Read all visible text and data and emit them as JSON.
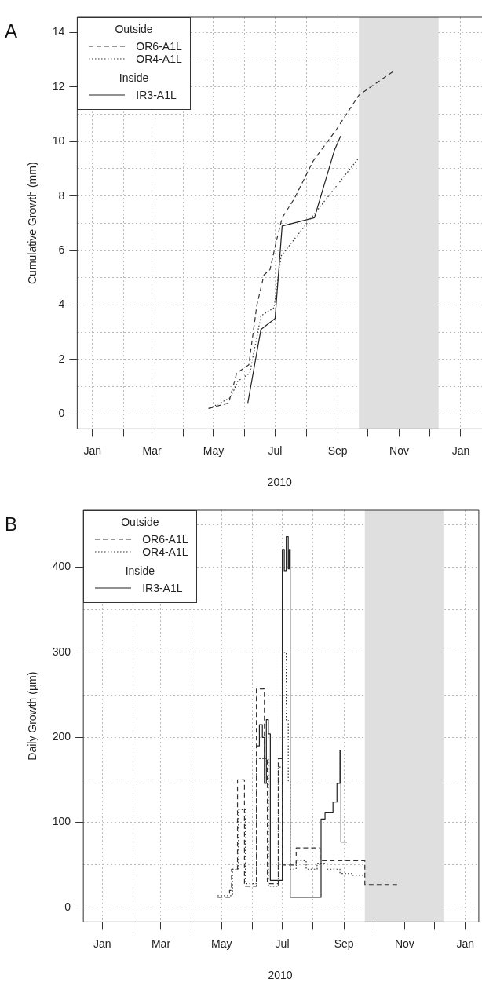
{
  "chart_data": [
    {
      "type": "line",
      "title": "A",
      "xlabel": "2010",
      "ylabel": "Cumulative Growth (mm)",
      "legend_title": "Outside",
      "annotations": [
        "Inside"
      ],
      "legend": "top left",
      "grid": true,
      "marker": "none",
      "xlim": [
        "2009-12-17",
        "2011-01-22"
      ],
      "ylim": [
        -0.55,
        14.56
      ],
      "xticks": [
        {
          "value": "2010-01-01",
          "label": "Jan"
        },
        {
          "value": "2010-02-01",
          "label": null
        },
        {
          "value": "2010-03-01",
          "label": "Mar"
        },
        {
          "value": "2010-04-01",
          "label": null
        },
        {
          "value": "2010-05-01",
          "label": "May"
        },
        {
          "value": "2010-06-01",
          "label": null
        },
        {
          "value": "2010-07-01",
          "label": "Jul"
        },
        {
          "value": "2010-08-01",
          "label": null
        },
        {
          "value": "2010-09-01",
          "label": "Sep"
        },
        {
          "value": "2010-10-01",
          "label": null
        },
        {
          "value": "2010-11-01",
          "label": "Nov"
        },
        {
          "value": "2010-12-01",
          "label": null
        },
        {
          "value": "2011-01-01",
          "label": "Jan"
        }
      ],
      "yticks": [
        0,
        {
          "value": 1,
          "label": null
        },
        2,
        {
          "value": 3,
          "label": null
        },
        4,
        {
          "value": 5,
          "label": null
        },
        6,
        {
          "value": 7,
          "label": null
        },
        8,
        {
          "value": 9,
          "label": null
        },
        10,
        {
          "value": 11,
          "label": null
        },
        12,
        {
          "value": 13,
          "label": null
        },
        14
      ],
      "bands": [
        {
          "axis": "x",
          "from": "2010-09-22",
          "to": "2010-12-10",
          "color": "#dfdfdf"
        }
      ],
      "series": [
        {
          "name": "OR6-A1L",
          "color": "#333333",
          "line_style": "dashed",
          "x": [
            "2010-04-26",
            "2010-05-16",
            "2010-05-24",
            "2010-06-05",
            "2010-06-13",
            "2010-06-20",
            "2010-06-26",
            "2010-07-02",
            "2010-07-08",
            "2010-07-20",
            "2010-08-08",
            "2010-08-30",
            "2010-09-22",
            "2010-10-27"
          ],
          "values": [
            0.2,
            0.4,
            1.5,
            1.8,
            4.0,
            5.1,
            5.3,
            6.3,
            7.2,
            7.9,
            9.3,
            10.4,
            11.7,
            12.6
          ]
        },
        {
          "name": "OR4-A1L",
          "color": "#333333",
          "line_style": "dotted",
          "x": [
            "2010-04-27",
            "2010-05-18",
            "2010-05-25",
            "2010-06-06",
            "2010-06-17",
            "2010-06-30",
            "2010-07-07",
            "2010-08-08",
            "2010-09-22"
          ],
          "values": [
            0.2,
            0.6,
            1.2,
            1.5,
            3.6,
            3.9,
            5.8,
            7.3,
            9.4
          ]
        },
        {
          "name": "IR3-A1L",
          "color": "#222222",
          "line_style": "solid",
          "x": [
            "2010-06-04",
            "2010-06-17",
            "2010-07-01",
            "2010-07-08",
            "2010-08-09",
            "2010-08-29",
            "2010-09-04"
          ],
          "values": [
            0.4,
            3.1,
            3.5,
            6.9,
            7.2,
            9.7,
            10.2
          ]
        }
      ]
    },
    {
      "type": "step",
      "title": "B",
      "xlabel": "2010",
      "ylabel": "Daily Growth (µm)",
      "legend_title": "Outside",
      "annotations": [
        "Inside"
      ],
      "legend": "top left",
      "grid": true,
      "marker": "none",
      "xlim": [
        "2009-12-13",
        "2011-01-13"
      ],
      "ylim": [
        -17,
        467
      ],
      "xticks": [
        {
          "value": "2010-01-01",
          "label": "Jan"
        },
        {
          "value": "2010-02-01",
          "label": null
        },
        {
          "value": "2010-03-01",
          "label": "Mar"
        },
        {
          "value": "2010-04-01",
          "label": null
        },
        {
          "value": "2010-05-01",
          "label": "May"
        },
        {
          "value": "2010-06-01",
          "label": null
        },
        {
          "value": "2010-07-01",
          "label": "Jul"
        },
        {
          "value": "2010-08-01",
          "label": null
        },
        {
          "value": "2010-09-01",
          "label": "Sep"
        },
        {
          "value": "2010-10-01",
          "label": null
        },
        {
          "value": "2010-11-01",
          "label": "Nov"
        },
        {
          "value": "2010-12-01",
          "label": null
        },
        {
          "value": "2011-01-01",
          "label": "Jan"
        }
      ],
      "yticks": [
        0,
        {
          "value": 50,
          "label": null
        },
        100,
        {
          "value": 150,
          "label": null
        },
        200,
        {
          "value": 250,
          "label": null
        },
        300,
        {
          "value": 350,
          "label": null
        },
        400,
        {
          "value": 450,
          "label": null
        }
      ],
      "bands": [
        {
          "axis": "x",
          "from": "2010-09-22",
          "to": "2010-12-10",
          "color": "#dfdfdf"
        }
      ],
      "series": [
        {
          "name": "OR6-A1L",
          "color": "#333333",
          "line_style": "dashed",
          "x": [
            "2010-04-27",
            "2010-05-09",
            "2010-05-11",
            "2010-05-17",
            "2010-05-24",
            "2010-06-05",
            "2010-06-13",
            "2010-06-16",
            "2010-06-27",
            "2010-07-01",
            "2010-07-15",
            "2010-08-08",
            "2010-09-22",
            "2010-10-26"
          ],
          "values": [
            12,
            20,
            45,
            150,
            25,
            257,
            175,
            28,
            175,
            50,
            70,
            55,
            27,
            27
          ]
        },
        {
          "name": "OR4-A1L",
          "color": "#333333",
          "line_style": "dotted",
          "x": [
            "2010-04-27",
            "2010-05-12",
            "2010-05-18",
            "2010-05-25",
            "2010-06-05",
            "2010-06-17",
            "2010-06-27",
            "2010-07-01",
            "2010-07-05",
            "2010-07-07",
            "2010-07-09",
            "2010-07-15",
            "2010-07-25",
            "2010-08-05",
            "2010-08-15",
            "2010-08-28",
            "2010-09-10",
            "2010-09-22"
          ],
          "values": [
            14,
            45,
            115,
            28,
            175,
            25,
            165,
            300,
            220,
            149,
            45,
            55,
            45,
            52,
            45,
            40,
            38,
            38
          ]
        },
        {
          "name": "IR3-A1L",
          "color": "#222222",
          "line_style": "solid",
          "x": [
            "2010-06-05",
            "2010-06-08",
            "2010-06-11",
            "2010-06-13",
            "2010-06-15",
            "2010-06-17",
            "2010-06-19",
            "2010-07-01",
            "2010-07-03",
            "2010-07-05",
            "2010-07-07",
            "2010-07-08",
            "2010-07-09",
            "2010-08-09",
            "2010-08-13",
            "2010-08-21",
            "2010-08-25",
            "2010-08-28",
            "2010-08-29",
            "2010-09-04"
          ],
          "values": [
            190,
            215,
            200,
            146,
            221,
            204,
            32,
            421,
            396,
            436,
            398,
            421,
            12,
            104,
            112,
            124,
            146,
            185,
            77,
            77
          ]
        }
      ]
    }
  ]
}
